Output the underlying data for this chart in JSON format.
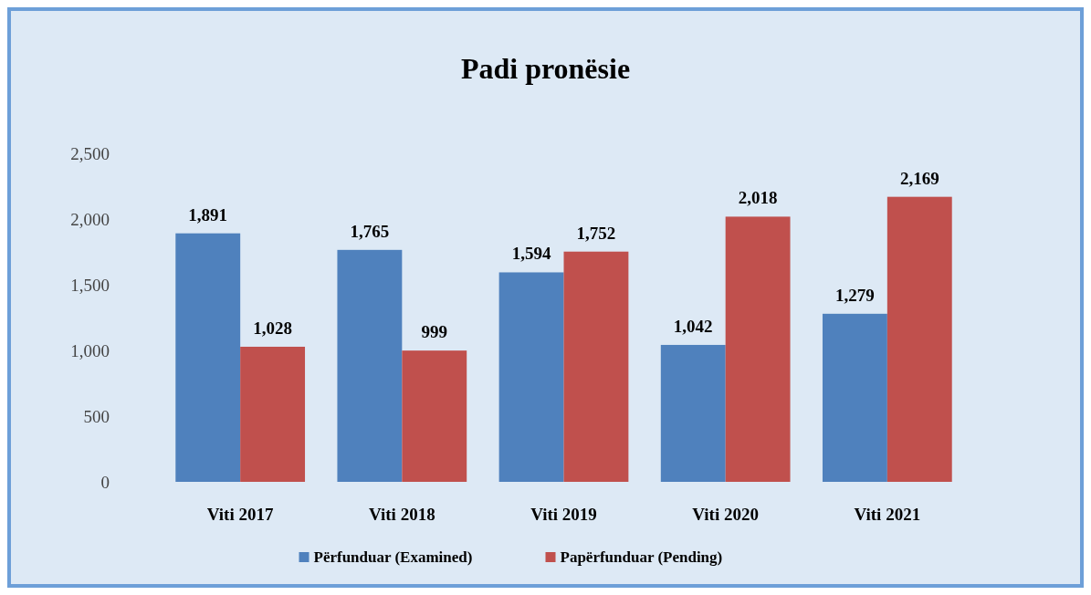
{
  "chart_data": {
    "type": "bar",
    "title": "Padi pronësie",
    "categories": [
      "Viti 2017",
      "Viti 2018",
      "Viti 2019",
      "Viti 2020",
      "Viti 2021"
    ],
    "series": [
      {
        "name": "Përfunduar (Examined)",
        "color": "#4f81bd",
        "values": [
          1891,
          1765,
          1594,
          1042,
          1279
        ],
        "value_labels": [
          "1,891",
          "1,765",
          "1,594",
          "1,042",
          "1,279"
        ]
      },
      {
        "name": "Papërfunduar (Pending)",
        "color": "#c0504d",
        "values": [
          1028,
          999,
          1752,
          2018,
          2169
        ],
        "value_labels": [
          "1,028",
          "999",
          "1,752",
          "2,018",
          "2,169"
        ]
      }
    ],
    "ylim": [
      0,
      2500
    ],
    "yticks": [
      0,
      {
        "value": 500,
        "label": "500"
      },
      {
        "value": 1000,
        "label": "1,000"
      },
      {
        "value": 1500,
        "label": "1,500"
      },
      {
        "value": 2000,
        "label": "2,000"
      },
      {
        "value": 2500,
        "label": "2,500"
      }
    ],
    "grid": false,
    "legend": "bottom"
  }
}
